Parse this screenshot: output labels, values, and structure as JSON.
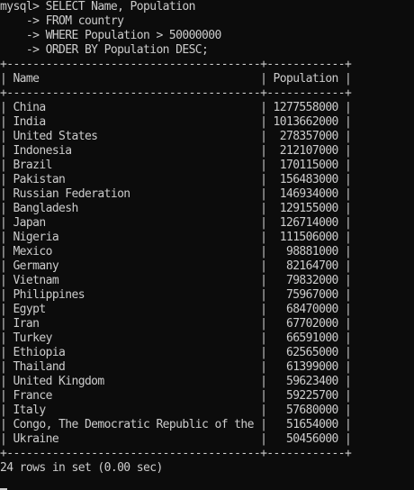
{
  "query": {
    "prompt": "mysql>",
    "continuation": "    ->",
    "lines": [
      "SELECT Name, Population",
      "FROM country",
      "WHERE Population > 50000000",
      "ORDER BY Population DESC;"
    ]
  },
  "table": {
    "columns": [
      "Name",
      "Population"
    ],
    "rows": [
      [
        "China",
        "1277558000"
      ],
      [
        "India",
        "1013662000"
      ],
      [
        "United States",
        "278357000"
      ],
      [
        "Indonesia",
        "212107000"
      ],
      [
        "Brazil",
        "170115000"
      ],
      [
        "Pakistan",
        "156483000"
      ],
      [
        "Russian Federation",
        "146934000"
      ],
      [
        "Bangladesh",
        "129155000"
      ],
      [
        "Japan",
        "126714000"
      ],
      [
        "Nigeria",
        "111506000"
      ],
      [
        "Mexico",
        "98881000"
      ],
      [
        "Germany",
        "82164700"
      ],
      [
        "Vietnam",
        "79832000"
      ],
      [
        "Philippines",
        "75967000"
      ],
      [
        "Egypt",
        "68470000"
      ],
      [
        "Iran",
        "67702000"
      ],
      [
        "Turkey",
        "66591000"
      ],
      [
        "Ethiopia",
        "62565000"
      ],
      [
        "Thailand",
        "61399000"
      ],
      [
        "United Kingdom",
        "59623400"
      ],
      [
        "France",
        "59225700"
      ],
      [
        "Italy",
        "57680000"
      ],
      [
        "Congo, The Democratic Republic of the",
        "51654000"
      ],
      [
        "Ukraine",
        "50456000"
      ]
    ]
  },
  "status": "24 rows in set (0.00 sec)"
}
